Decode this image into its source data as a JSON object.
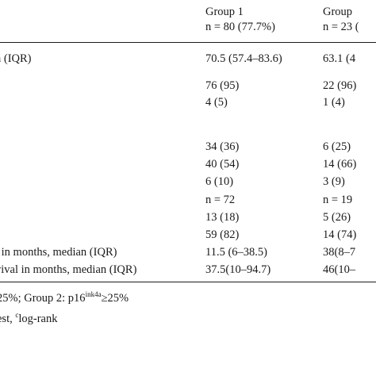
{
  "header": {
    "group1_name": "Group 1",
    "group1_n": "n = 80 (77.7%)",
    "group2_name": "Group",
    "group2_n": "n = 23 ("
  },
  "rows": [
    {
      "label": "n (IQR)",
      "g1": "70.5 (57.4–83.6)",
      "g2": "63.1 (4"
    },
    {
      "label": "",
      "g1": "76 (95)",
      "g2": "22 (96)"
    },
    {
      "label": "",
      "g1": "4 (5)",
      "g2": "1 (4)"
    },
    {
      "label": "",
      "g1": "34 (36)",
      "g2": "6 (25)"
    },
    {
      "label": "",
      "g1": "40 (54)",
      "g2": "14 (66)"
    },
    {
      "label": "",
      "g1": "6 (10)",
      "g2": "3 (9)"
    },
    {
      "label": "",
      "g1": "n = 72",
      "g2": "n = 19"
    },
    {
      "label": "",
      "g1": "13 (18)",
      "g2": "5 (26)"
    },
    {
      "label": "",
      "g1": "59 (82)",
      "g2": "14 (74)"
    },
    {
      "label": "l in months, median (IQR)",
      "g1": "11.5 (6–38.5)",
      "g2": "38(8–7"
    },
    {
      "label": "vival in months, median (IQR)",
      "g1": "37.5(10–94.7)",
      "g2": "46(10–"
    }
  ],
  "footnotes": {
    "line1_start": "25%; Group 2: p16",
    "line1_sup": "ink4a",
    "line1_end": "≥25%",
    "line2_start": "est, ",
    "line2_sup": "c",
    "line2_end": "log-rank"
  }
}
